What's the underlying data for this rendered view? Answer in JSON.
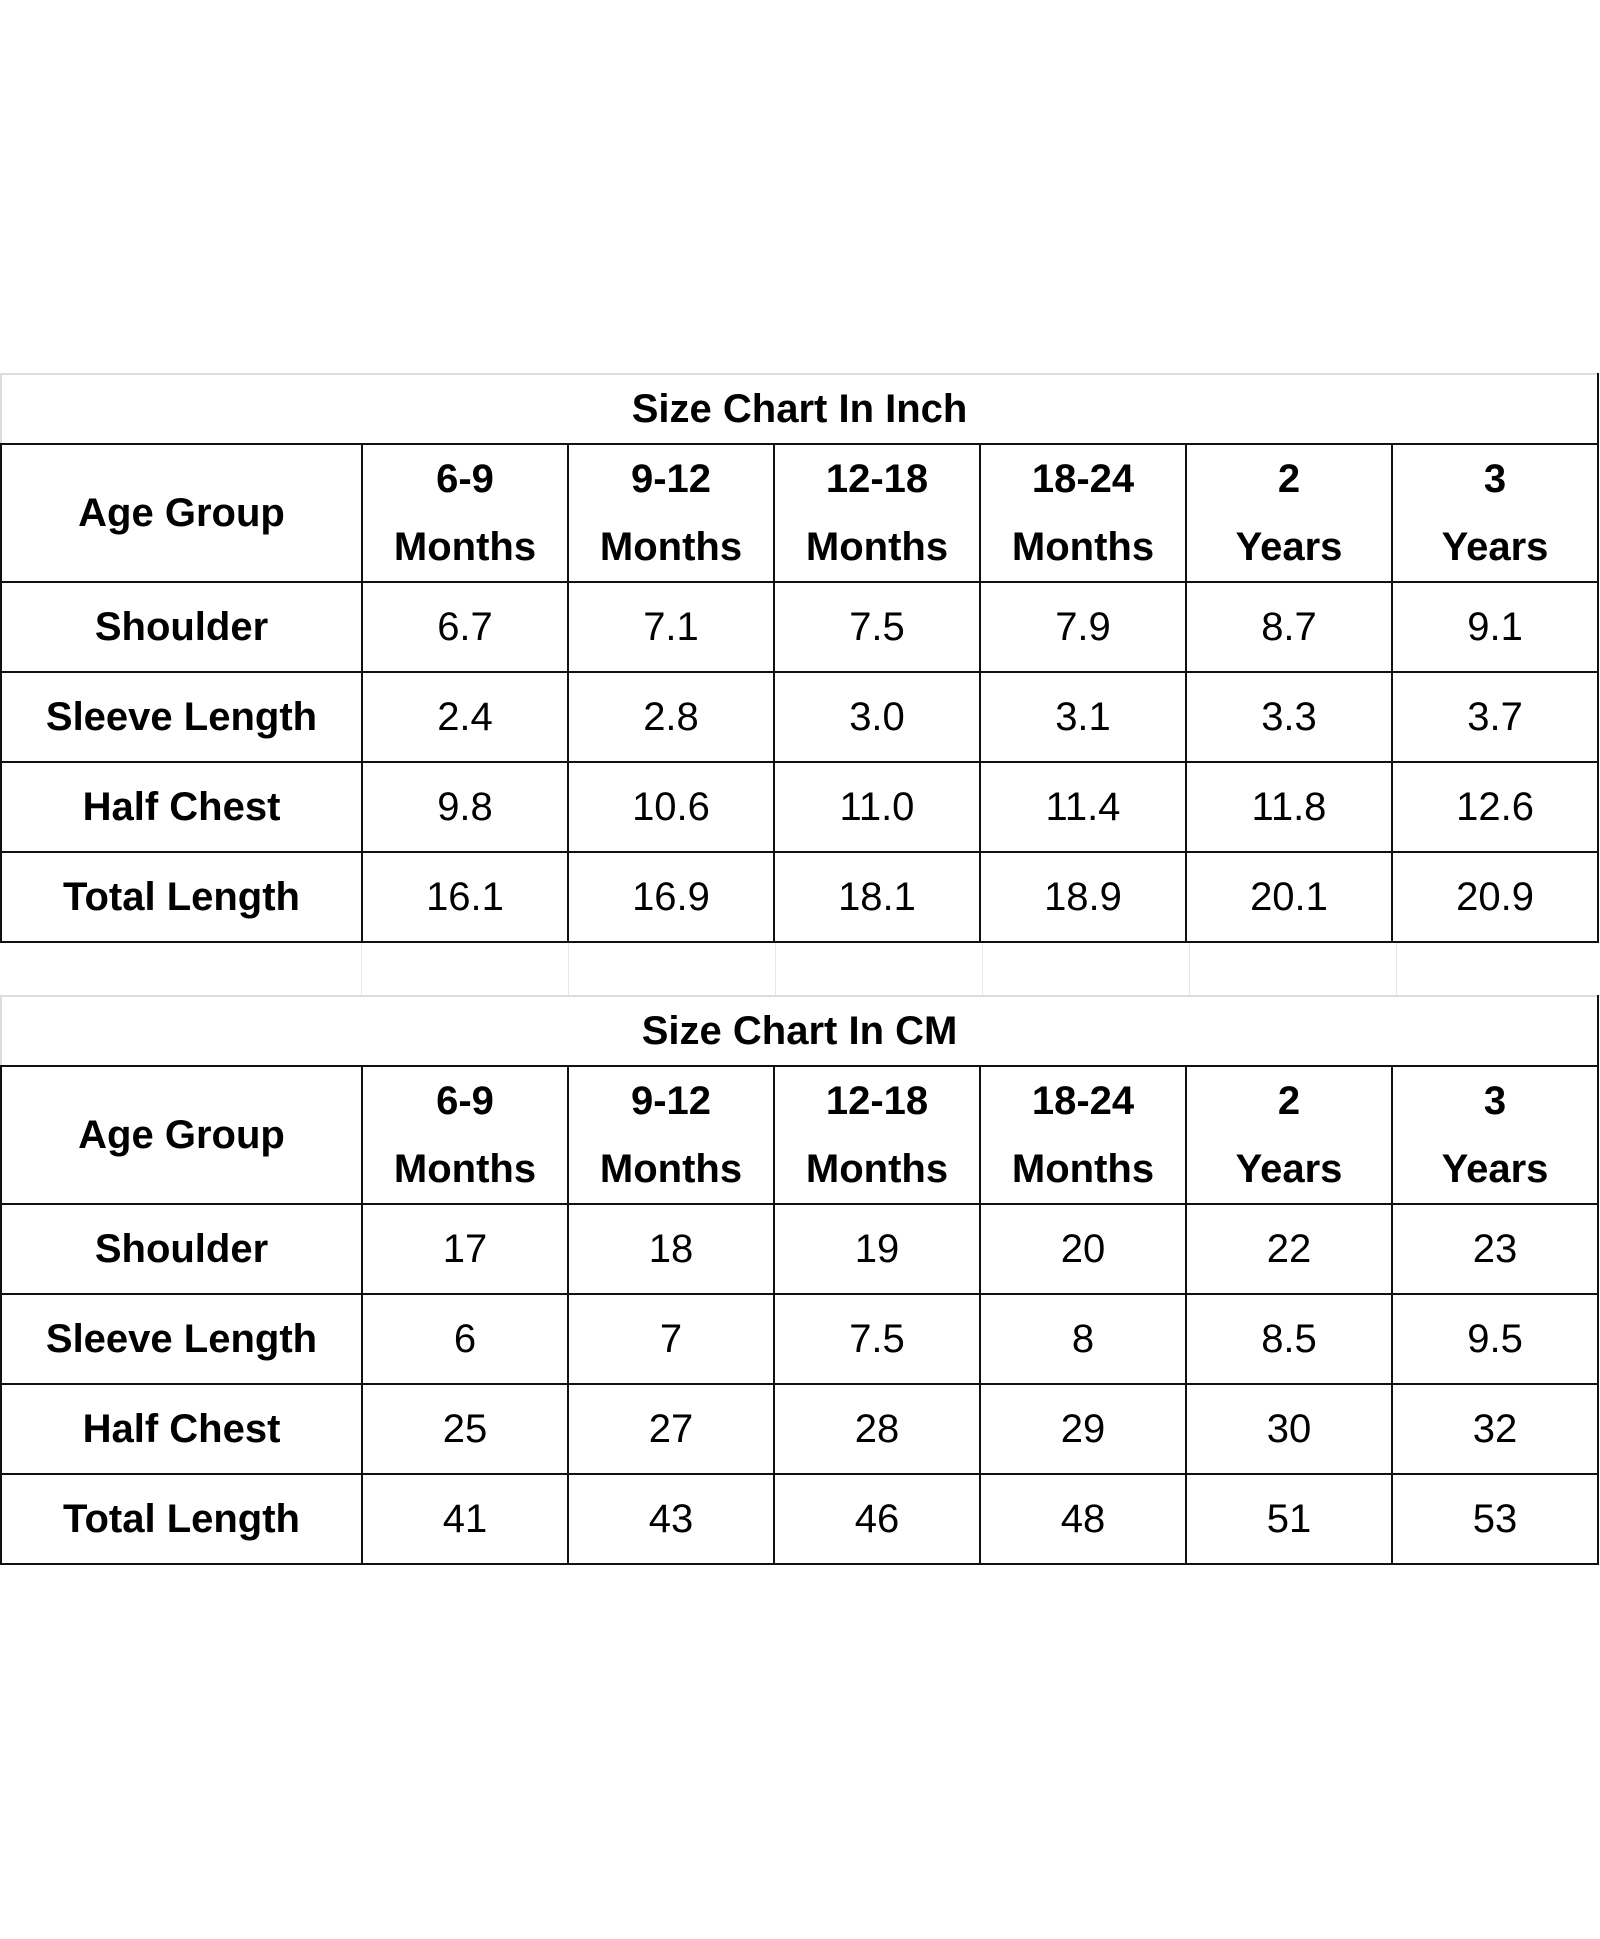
{
  "tables": [
    {
      "title": "Size Chart In Inch",
      "header_label": "Age Group",
      "columns": [
        {
          "top": "6-9",
          "bottom": "Months"
        },
        {
          "top": "9-12",
          "bottom": "Months"
        },
        {
          "top": "12-18",
          "bottom": "Months"
        },
        {
          "top": "18-24",
          "bottom": "Months"
        },
        {
          "top": "2",
          "bottom": "Years"
        },
        {
          "top": "3",
          "bottom": "Years"
        }
      ],
      "rows": [
        {
          "label": "Shoulder",
          "values": [
            "6.7",
            "7.1",
            "7.5",
            "7.9",
            "8.7",
            "9.1"
          ]
        },
        {
          "label": "Sleeve Length",
          "values": [
            "2.4",
            "2.8",
            "3.0",
            "3.1",
            "3.3",
            "3.7"
          ]
        },
        {
          "label": "Half Chest",
          "values": [
            "9.8",
            "10.6",
            "11.0",
            "11.4",
            "11.8",
            "12.6"
          ]
        },
        {
          "label": "Total Length",
          "values": [
            "16.1",
            "16.9",
            "18.1",
            "18.9",
            "20.1",
            "20.9"
          ]
        }
      ]
    },
    {
      "title": "Size Chart In CM",
      "header_label": "Age Group",
      "columns": [
        {
          "top": "6-9",
          "bottom": "Months"
        },
        {
          "top": "9-12",
          "bottom": "Months"
        },
        {
          "top": "12-18",
          "bottom": "Months"
        },
        {
          "top": "18-24",
          "bottom": "Months"
        },
        {
          "top": "2",
          "bottom": "Years"
        },
        {
          "top": "3",
          "bottom": "Years"
        }
      ],
      "rows": [
        {
          "label": "Shoulder",
          "values": [
            "17",
            "18",
            "19",
            "20",
            "22",
            "23"
          ]
        },
        {
          "label": "Sleeve Length",
          "values": [
            "6",
            "7",
            "7.5",
            "8",
            "8.5",
            "9.5"
          ]
        },
        {
          "label": "Half Chest",
          "values": [
            "25",
            "27",
            "28",
            "29",
            "30",
            "32"
          ]
        },
        {
          "label": "Total Length",
          "values": [
            "41",
            "43",
            "46",
            "48",
            "51",
            "53"
          ]
        }
      ]
    }
  ]
}
